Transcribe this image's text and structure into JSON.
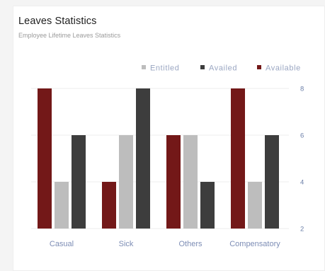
{
  "card": {
    "title": "Leaves Statistics",
    "subtitle": "Employee Lifetime Leaves Statistics"
  },
  "chart_data": {
    "type": "bar",
    "title": "Leaves Statistics",
    "subtitle": "Employee Lifetime Leaves Statistics",
    "categories": [
      "Casual",
      "Sick",
      "Others",
      "Compensatory"
    ],
    "series": [
      {
        "name": "Available",
        "color": "#731818",
        "values": [
          8,
          4,
          6,
          8
        ]
      },
      {
        "name": "Entitled",
        "color": "#bdbdbd",
        "values": [
          4,
          6,
          6,
          4
        ]
      },
      {
        "name": "Availed",
        "color": "#3d3d3d",
        "values": [
          6,
          8,
          4,
          6
        ]
      }
    ],
    "legend_order": [
      "Entitled",
      "Availed",
      "Available"
    ],
    "legend_position": "top-right",
    "y_ticks": [
      2,
      4,
      6,
      8
    ],
    "ylim": [
      2,
      8
    ],
    "y_axis_side": "right",
    "grid": true
  }
}
